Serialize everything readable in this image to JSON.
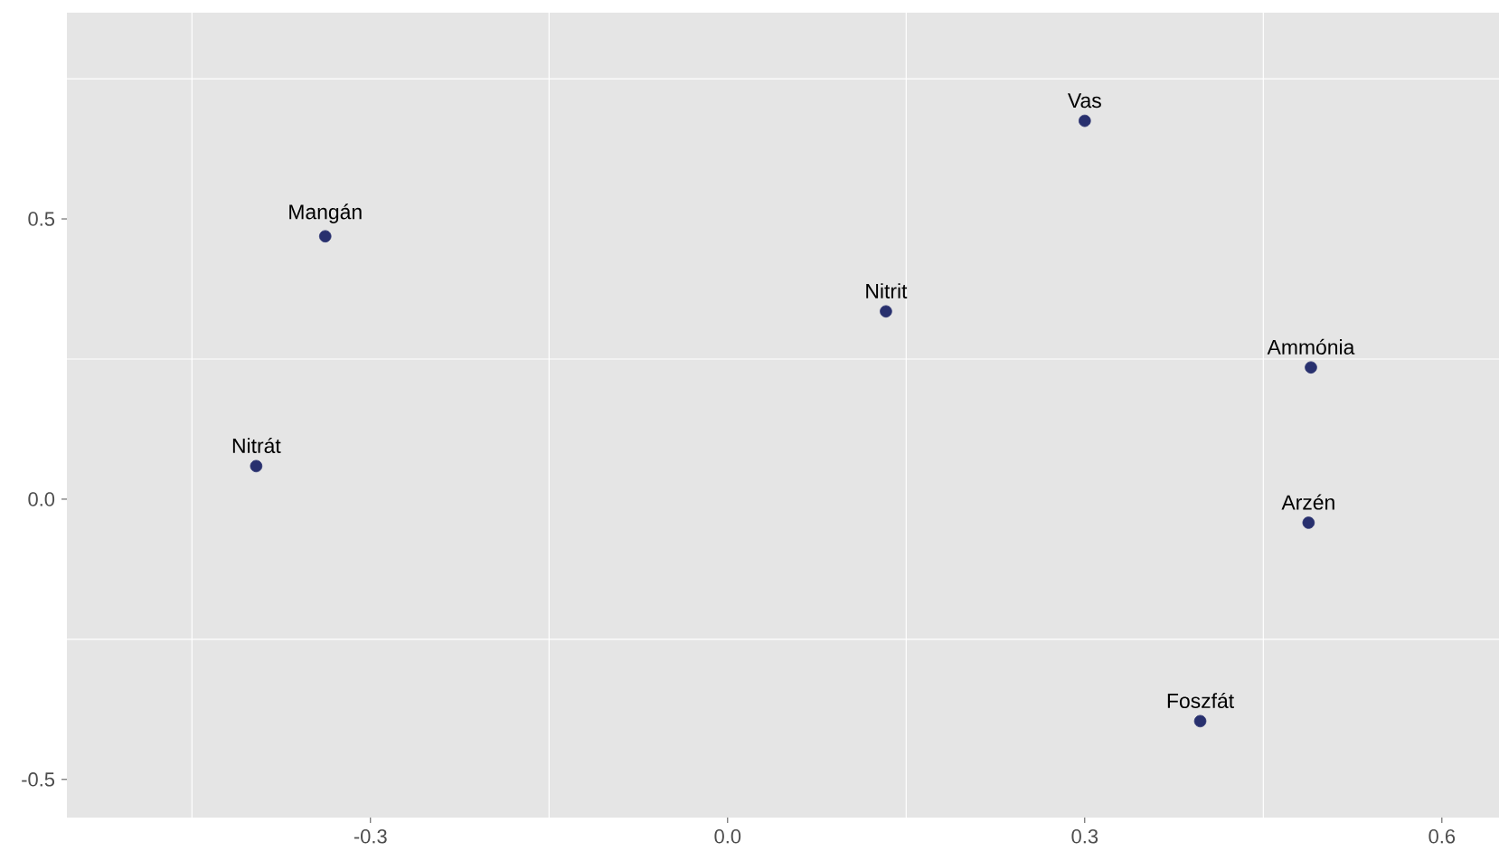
{
  "chart_data": {
    "type": "scatter",
    "marker": "circle",
    "color": "#28306e",
    "grid": true,
    "x": [
      0.3,
      0.133,
      0.49,
      0.488,
      0.397,
      -0.338,
      -0.396
    ],
    "values": [
      0.675,
      0.335,
      0.235,
      -0.042,
      -0.396,
      0.469,
      0.059
    ],
    "annotations": [
      {
        "text": "Vas",
        "x": 0.3,
        "y": 0.675
      },
      {
        "text": "Nitrit",
        "x": 0.133,
        "y": 0.335
      },
      {
        "text": "Ammónia",
        "x": 0.49,
        "y": 0.235
      },
      {
        "text": "Arzén",
        "x": 0.488,
        "y": -0.042
      },
      {
        "text": "Foszfát",
        "x": 0.397,
        "y": -0.396
      },
      {
        "text": "Mangán",
        "x": -0.338,
        "y": 0.469
      },
      {
        "text": "Nitrát",
        "x": -0.396,
        "y": 0.059
      }
    ],
    "xlim": [
      -0.555,
      0.648
    ],
    "ylim": [
      -0.568,
      0.868
    ],
    "xticks": [
      {
        "value": -0.3,
        "label": "-0.3"
      },
      {
        "value": 0,
        "label": "0.0"
      },
      {
        "value": 0.3,
        "label": "0.3"
      },
      {
        "value": 0.6,
        "label": "0.6"
      }
    ],
    "yticks": [
      {
        "value": -0.5,
        "label": "-0.5"
      },
      {
        "value": 0,
        "label": "0.0"
      },
      {
        "value": 0.5,
        "label": "0.5"
      }
    ]
  }
}
